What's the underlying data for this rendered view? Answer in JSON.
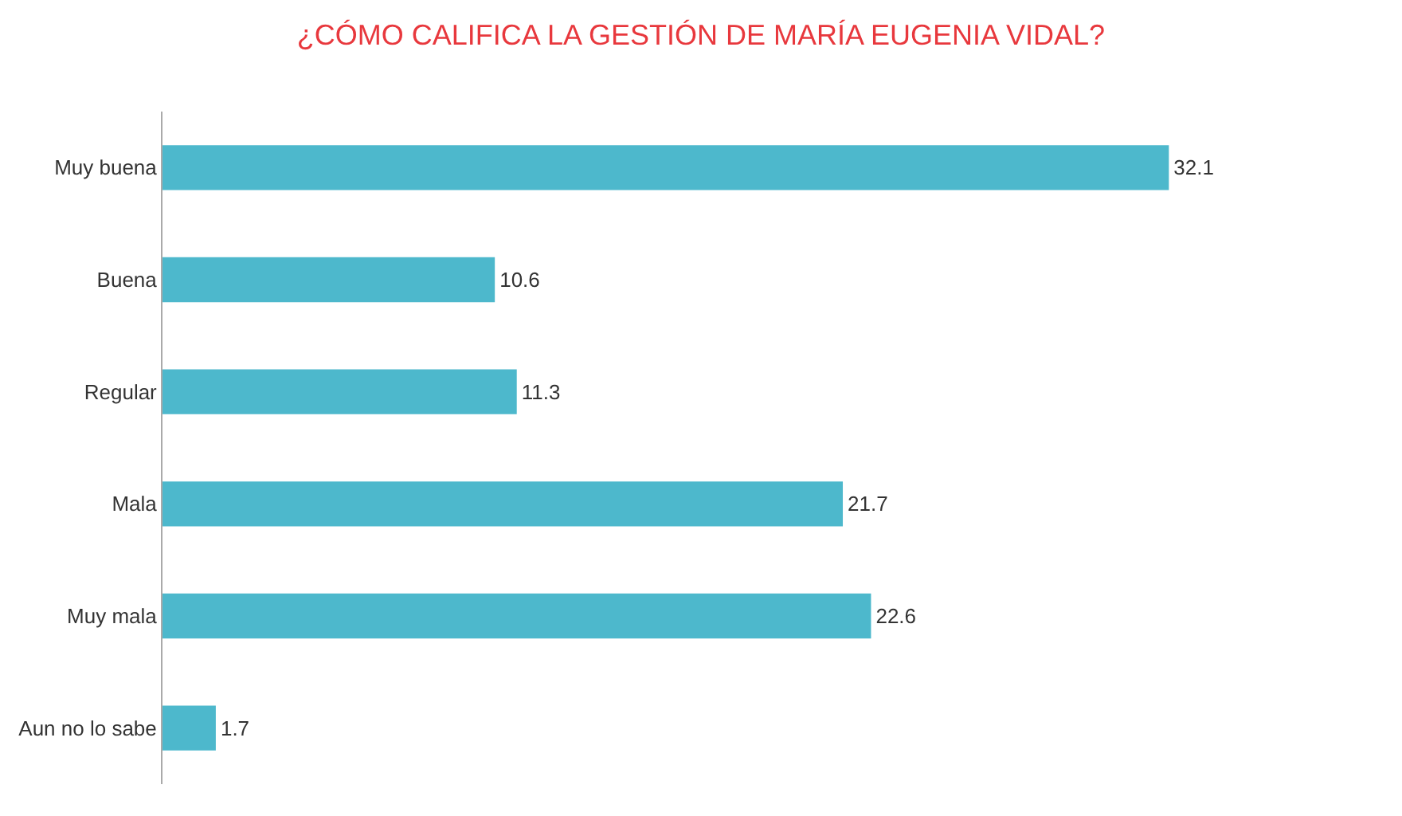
{
  "chart_data": {
    "type": "bar",
    "orientation": "horizontal",
    "title": "¿CÓMO CALIFICA LA GESTIÓN DE MARÍA EUGENIA VIDAL?",
    "categories": [
      "Muy buena",
      "Buena",
      "Regular",
      "Mala",
      "Muy mala",
      "Aun no lo sabe"
    ],
    "values": [
      32.1,
      10.6,
      11.3,
      21.7,
      22.6,
      1.7
    ],
    "color": "#4db8cc",
    "data_labels": true
  }
}
